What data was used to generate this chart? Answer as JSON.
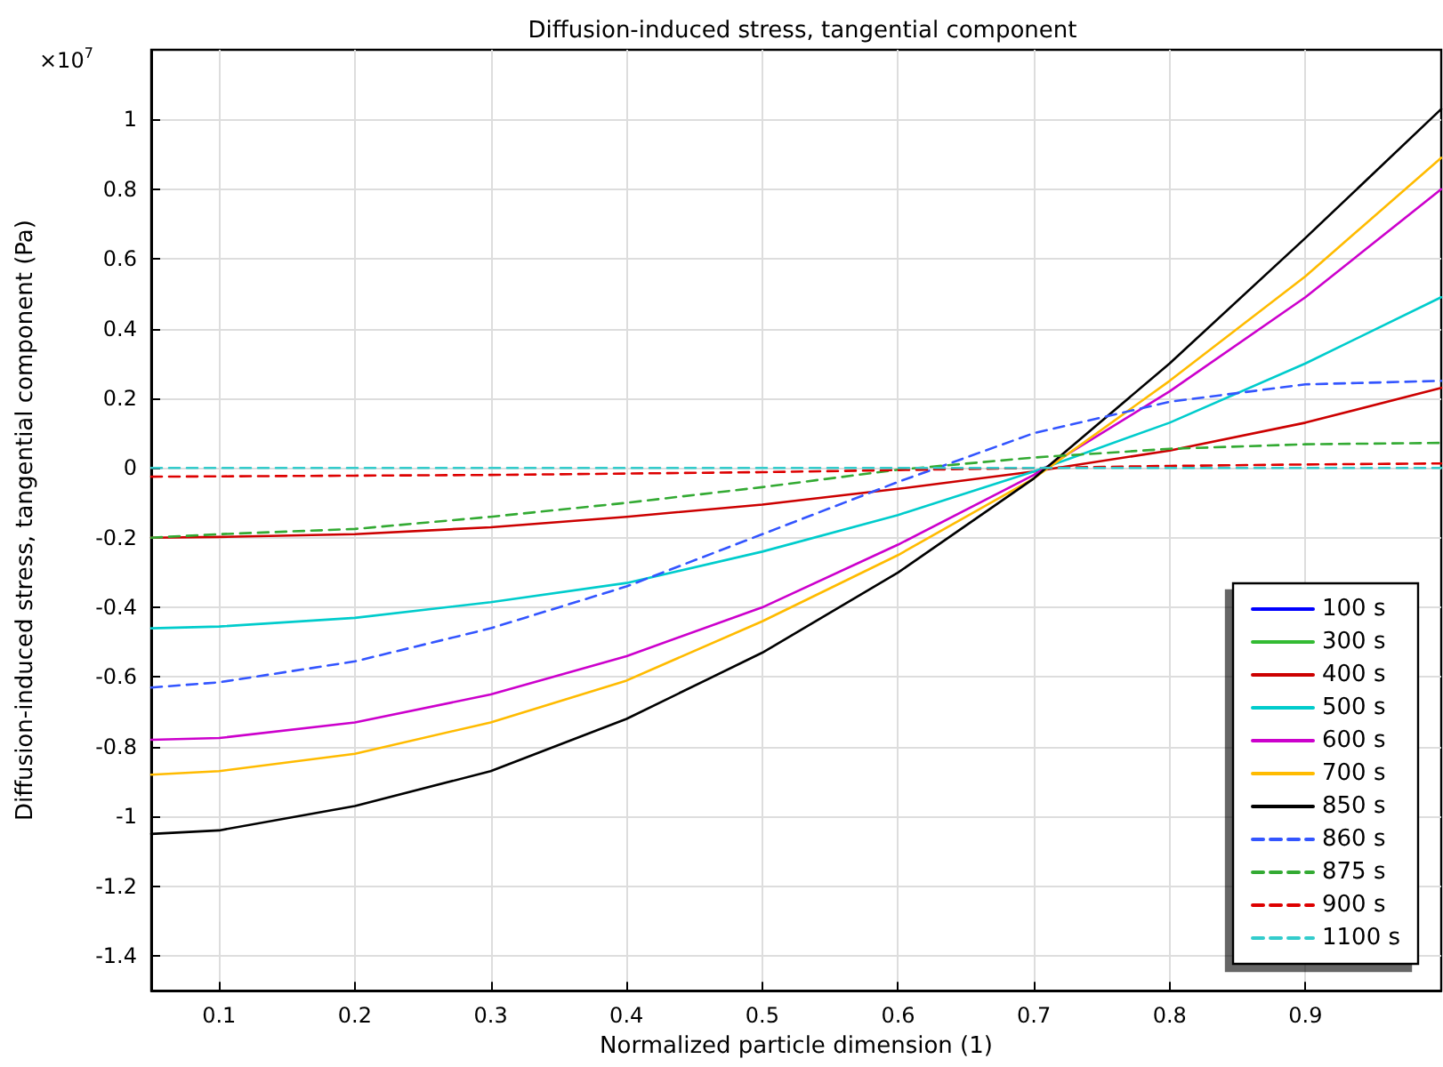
{
  "chart_data": {
    "type": "line",
    "title": "Diffusion-induced stress, tangential component",
    "xlabel": "Normalized particle dimension (1)",
    "ylabel": "Diffusion-induced stress, tangential component (Pa)",
    "annotations": [
      "×10$^{7}$"
    ],
    "x": [
      0.05,
      0.1,
      0.2,
      0.3,
      0.4,
      0.5,
      0.6,
      0.7,
      0.8,
      0.9,
      1.0
    ],
    "xlim": [
      0.05,
      1.0
    ],
    "xticks": [
      0.1,
      0.2,
      0.3,
      0.4,
      0.5,
      0.6,
      0.7,
      0.8,
      0.9
    ],
    "ylim": [
      -1.5,
      1.2
    ],
    "yticks": [
      -1.4,
      -1.2,
      -1,
      -0.8,
      -0.6,
      -0.4,
      -0.2,
      0,
      0.2,
      0.4,
      0.6,
      0.8,
      1
    ],
    "grid": true,
    "legend": "bottom right",
    "marker": "none",
    "series": [
      {
        "name": "100 s",
        "color": "#0000ff",
        "line_style": "solid",
        "values": [
          null,
          null,
          null,
          null,
          null,
          null,
          null,
          null,
          null,
          null,
          null
        ]
      },
      {
        "name": "300 s",
        "color": "#33bb33",
        "line_style": "solid",
        "values": [
          null,
          null,
          null,
          null,
          null,
          null,
          null,
          null,
          null,
          null,
          null
        ]
      },
      {
        "name": "400 s",
        "color": "#cc0000",
        "line_style": "solid",
        "values": [
          -0.2,
          -0.198,
          -0.19,
          -0.17,
          -0.14,
          -0.105,
          -0.06,
          -0.01,
          0.05,
          0.13,
          0.23
        ]
      },
      {
        "name": "500 s",
        "color": "#00cccc",
        "line_style": "solid",
        "values": [
          -0.46,
          -0.455,
          -0.43,
          -0.385,
          -0.33,
          -0.24,
          -0.135,
          -0.01,
          0.13,
          0.3,
          0.49
        ]
      },
      {
        "name": "600 s",
        "color": "#cc00cc",
        "line_style": "solid",
        "values": [
          -0.78,
          -0.775,
          -0.73,
          -0.65,
          -0.54,
          -0.4,
          -0.22,
          -0.02,
          0.22,
          0.49,
          0.8
        ]
      },
      {
        "name": "700 s",
        "color": "#ffbb00",
        "line_style": "solid",
        "values": [
          -0.88,
          -0.87,
          -0.82,
          -0.73,
          -0.61,
          -0.44,
          -0.25,
          -0.03,
          0.25,
          0.55,
          0.89
        ]
      },
      {
        "name": "850 s",
        "color": "#000000",
        "line_style": "solid",
        "values": [
          -1.05,
          -1.04,
          -0.97,
          -0.87,
          -0.72,
          -0.53,
          -0.3,
          -0.03,
          0.3,
          0.66,
          1.03
        ]
      },
      {
        "name": "860 s",
        "color": "#3355ff",
        "line_style": "dashed",
        "values": [
          -0.63,
          -0.615,
          -0.555,
          -0.46,
          -0.34,
          -0.19,
          -0.04,
          0.1,
          0.19,
          0.24,
          0.25
        ]
      },
      {
        "name": "875 s",
        "color": "#33aa33",
        "line_style": "dashed",
        "values": [
          -0.2,
          -0.19,
          -0.175,
          -0.14,
          -0.1,
          -0.055,
          -0.005,
          0.03,
          0.055,
          0.068,
          0.072
        ]
      },
      {
        "name": "900 s",
        "color": "#dd0000",
        "line_style": "dashed",
        "values": [
          -0.025,
          -0.024,
          -0.022,
          -0.02,
          -0.016,
          -0.012,
          -0.006,
          0,
          0.006,
          0.01,
          0.013
        ]
      },
      {
        "name": "1100 s",
        "color": "#33cccc",
        "line_style": "dashed",
        "values": [
          0,
          0,
          0,
          0,
          0,
          0,
          0,
          0,
          0,
          0,
          0
        ]
      }
    ]
  }
}
